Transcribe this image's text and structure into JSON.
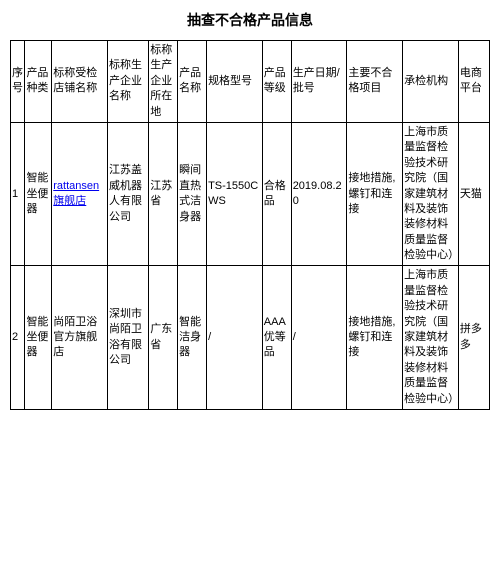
{
  "title": "抽查不合格产品信息",
  "columns": [
    "序号",
    "产品种类",
    "标称受检店铺名称",
    "标称生产企业名称",
    "标称生产企业所在地",
    "产品名称",
    "规格型号",
    "产品等级",
    "生产日期/批号",
    "主要不合格项目",
    "承检机构",
    "电商平台"
  ],
  "rows": [
    {
      "idx": "1",
      "category": "智能坐便器",
      "store": "rattansen旗舰店",
      "mfr": "江苏盖威机器人有限公司",
      "loc": "江苏省",
      "pname": "瞬间直热式洁身器",
      "model": "TS-1550CWS",
      "grade": "合格品",
      "date": "2019.08.20",
      "defect": "接地措施,螺钉和连接",
      "inspector": "上海市质量监督检验技术研究院（国家建筑材料及装饰装修材料质量监督检验中心）",
      "platform": "天猫",
      "store_link": true
    },
    {
      "idx": "2",
      "category": "智能坐便器",
      "store": "尚陌卫浴官方旗舰店",
      "mfr": "深圳市尚陌卫浴有限公司",
      "loc": "广东省",
      "pname": "智能洁身器",
      "model": "/",
      "grade": "AAA优等品",
      "date": "/",
      "defect": "接地措施,螺钉和连接",
      "inspector": "上海市质量监督检验技术研究院（国家建筑材料及装饰装修材料质量监督检验中心）",
      "platform": "拼多多",
      "store_link": false
    }
  ]
}
